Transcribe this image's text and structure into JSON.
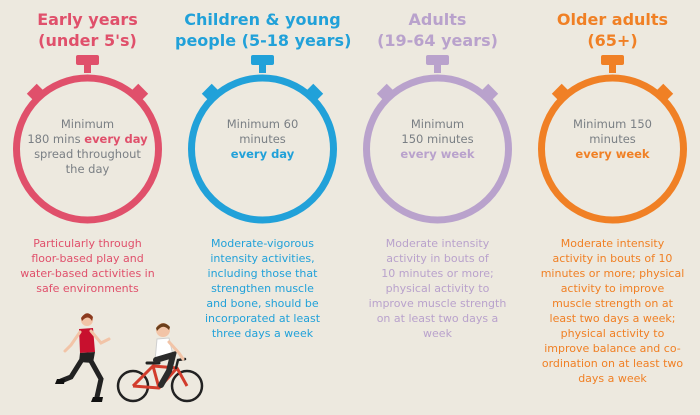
{
  "colors": {
    "background": "#ede9df",
    "early_years": "#e0506b",
    "children": "#21a1d9",
    "adults": "#b9a2cc",
    "older_adults": "#f08025",
    "timer_text": "#7a7f84"
  },
  "columns": [
    {
      "id": "early-years",
      "title_lines": [
        "Early years",
        "(under 5's)"
      ],
      "timer_lines": [
        {
          "segments": [
            {
              "text": "Minimum",
              "bold": false
            }
          ]
        },
        {
          "segments": [
            {
              "text": "180 mins ",
              "bold": false
            },
            {
              "text": "every day",
              "bold": true
            }
          ]
        },
        {
          "segments": [
            {
              "text": "spread throughout",
              "bold": false
            }
          ]
        },
        {
          "segments": [
            {
              "text": "the day",
              "bold": false
            }
          ]
        }
      ],
      "description_lines": [
        "Particularly through",
        "floor-based play and",
        "water-based activities in",
        "safe environments"
      ]
    },
    {
      "id": "children",
      "title_lines": [
        "Children & young",
        "people (5-18 years)"
      ],
      "timer_lines": [
        {
          "segments": [
            {
              "text": "Minimum 60",
              "bold": false
            }
          ]
        },
        {
          "segments": [
            {
              "text": "minutes",
              "bold": false
            }
          ]
        },
        {
          "segments": [
            {
              "text": "every day",
              "bold": true
            }
          ]
        }
      ],
      "description_lines": [
        "Moderate-vigorous",
        "intensity activities,",
        "including those that",
        "strengthen muscle",
        "and bone, should be",
        "incorporated at least",
        "three days a week"
      ]
    },
    {
      "id": "adults",
      "title_lines": [
        "Adults",
        "(19-64 years)"
      ],
      "timer_lines": [
        {
          "segments": [
            {
              "text": "Minimum",
              "bold": false
            }
          ]
        },
        {
          "segments": [
            {
              "text": "150 minutes",
              "bold": false
            }
          ]
        },
        {
          "segments": [
            {
              "text": "every week",
              "bold": true
            }
          ]
        }
      ],
      "description_lines": [
        "Moderate intensity",
        "activity in bouts of",
        "10 minutes or more;",
        "physical activity to",
        "improve muscle strength",
        "on at least two days a",
        "week"
      ]
    },
    {
      "id": "older-adults",
      "title_lines": [
        "Older adults",
        "(65+)"
      ],
      "timer_lines": [
        {
          "segments": [
            {
              "text": "Minimum 150",
              "bold": false
            }
          ]
        },
        {
          "segments": [
            {
              "text": "minutes",
              "bold": false
            }
          ]
        },
        {
          "segments": [
            {
              "text": "every week",
              "bold": true
            }
          ]
        }
      ],
      "description_lines": [
        "Moderate intensity",
        "activity in bouts of 10",
        "minutes or more; physical",
        "activity to improve",
        "muscle strength on at",
        "least two days a week;",
        "physical activity to",
        "improve balance and co-",
        "ordination on at least two",
        "days a week"
      ]
    }
  ],
  "illustrations": {
    "runner_icon": "running-woman-icon",
    "cyclist_icon": "cyclist-icon"
  }
}
